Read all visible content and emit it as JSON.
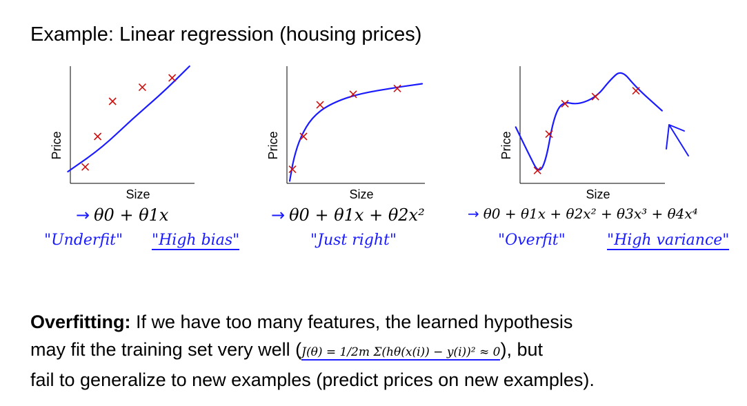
{
  "title": "Example: Linear regression (housing prices)",
  "colors": {
    "marker": "#cc1111",
    "ink": "#1a1aff",
    "axis": "#000000"
  },
  "chart_data": [
    {
      "type": "scatter",
      "xlabel": "Size",
      "ylabel": "Price",
      "points": [
        [
          0.12,
          0.14
        ],
        [
          0.22,
          0.4
        ],
        [
          0.34,
          0.7
        ],
        [
          0.58,
          0.82
        ],
        [
          0.82,
          0.9
        ]
      ],
      "fit": [
        [
          -0.02,
          0.1
        ],
        [
          0.25,
          0.3
        ],
        [
          0.5,
          0.55
        ],
        [
          0.75,
          0.78
        ],
        [
          0.96,
          1.0
        ]
      ],
      "formula": "θ0 + θ1x",
      "notes": [
        "\"Underfit\"",
        "\"High bias\""
      ]
    },
    {
      "type": "scatter",
      "xlabel": "Size",
      "ylabel": "Price",
      "points": [
        [
          0.04,
          0.12
        ],
        [
          0.12,
          0.4
        ],
        [
          0.24,
          0.67
        ],
        [
          0.48,
          0.76
        ],
        [
          0.8,
          0.81
        ]
      ],
      "fit": [
        [
          0.02,
          0.02
        ],
        [
          0.05,
          0.22
        ],
        [
          0.1,
          0.4
        ],
        [
          0.18,
          0.56
        ],
        [
          0.3,
          0.67
        ],
        [
          0.5,
          0.76
        ],
        [
          0.8,
          0.82
        ],
        [
          0.98,
          0.85
        ]
      ],
      "formula": "θ0 + θ1x + θ2x²",
      "notes": [
        "\"Just right\""
      ]
    },
    {
      "type": "scatter",
      "xlabel": "Size",
      "ylabel": "Price",
      "points": [
        [
          0.12,
          0.11
        ],
        [
          0.2,
          0.42
        ],
        [
          0.31,
          0.68
        ],
        [
          0.52,
          0.74
        ],
        [
          0.8,
          0.79
        ]
      ],
      "fit": [
        [
          -0.03,
          0.48
        ],
        [
          0.06,
          0.25
        ],
        [
          0.13,
          0.08
        ],
        [
          0.18,
          0.2
        ],
        [
          0.23,
          0.55
        ],
        [
          0.29,
          0.7
        ],
        [
          0.4,
          0.67
        ],
        [
          0.53,
          0.74
        ],
        [
          0.62,
          0.88
        ],
        [
          0.7,
          0.97
        ],
        [
          0.8,
          0.82
        ],
        [
          0.98,
          0.62
        ]
      ],
      "formula": "θ0 + θ1x + θ2x² + θ3x³ + θ4x⁴",
      "notes": [
        "\"Overfit\"",
        "\"High variance\""
      ]
    }
  ],
  "overfitting": {
    "heading": "Overfitting:",
    "line1": "If we have too many features, the learned hypothesis",
    "line2a": "may fit the training set very well (",
    "equation": "J(θ) = 1/2m Σ(hθ(x(i)) − y(i))² ≈ 0",
    "line2b": "), but",
    "line3": "fail to generalize to new examples (predict prices on new examples)."
  }
}
